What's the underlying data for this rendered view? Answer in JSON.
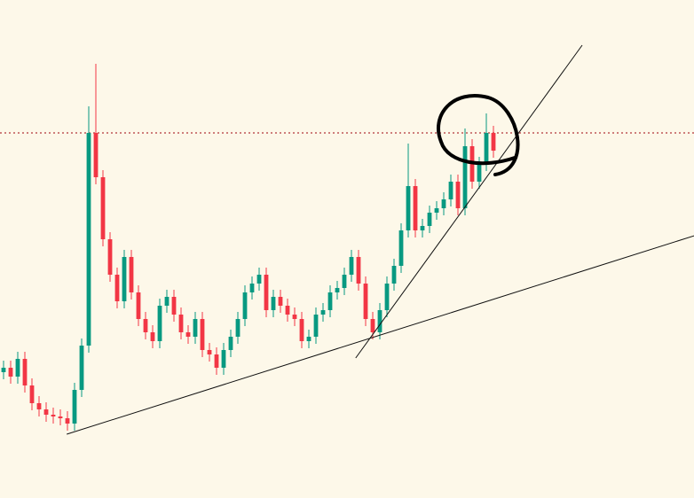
{
  "chart_data": {
    "type": "candlestick",
    "x": [
      0,
      1,
      2,
      3,
      4,
      5,
      6,
      7,
      8,
      9,
      10,
      11,
      12,
      13,
      14,
      15,
      16,
      17,
      18,
      19,
      20,
      21,
      22,
      23,
      24,
      25,
      26,
      27,
      28,
      29,
      30,
      31,
      32,
      33,
      34,
      35,
      36,
      37,
      38,
      39,
      40,
      41,
      42,
      43,
      44,
      45,
      46,
      47,
      48,
      49,
      50,
      51,
      52,
      53,
      54,
      55,
      56,
      57,
      58,
      59,
      60,
      61,
      62,
      63,
      64,
      65,
      66,
      67,
      68,
      69
    ],
    "open": [
      142,
      147,
      137,
      157,
      127,
      107,
      100,
      94,
      92,
      90,
      84,
      122,
      172,
      412,
      362,
      292,
      252,
      222,
      272,
      232,
      202,
      187,
      177,
      217,
      227,
      207,
      187,
      182,
      202,
      167,
      162,
      147,
      167,
      182,
      202,
      232,
      242,
      252,
      212,
      227,
      217,
      207,
      202,
      177,
      182,
      207,
      212,
      232,
      237,
      252,
      272,
      242,
      202,
      187,
      212,
      242,
      262,
      302,
      352,
      302,
      307,
      322,
      327,
      337,
      357,
      327,
      397,
      357,
      377,
      412
    ],
    "high": [
      155,
      155,
      165,
      165,
      135,
      115,
      108,
      102,
      100,
      98,
      130,
      180,
      442,
      490,
      370,
      300,
      260,
      280,
      280,
      240,
      210,
      195,
      225,
      235,
      235,
      215,
      195,
      210,
      210,
      175,
      170,
      175,
      190,
      210,
      240,
      250,
      260,
      260,
      235,
      235,
      225,
      215,
      210,
      190,
      215,
      220,
      240,
      245,
      260,
      280,
      280,
      250,
      210,
      220,
      250,
      270,
      310,
      400,
      360,
      315,
      330,
      335,
      345,
      365,
      365,
      417,
      405,
      385,
      434,
      420
    ],
    "low": [
      134,
      129,
      129,
      119,
      99,
      92,
      86,
      84,
      82,
      76,
      76,
      114,
      164,
      354,
      284,
      244,
      214,
      214,
      224,
      194,
      179,
      169,
      169,
      209,
      199,
      179,
      174,
      174,
      159,
      154,
      139,
      139,
      159,
      174,
      194,
      224,
      234,
      204,
      204,
      209,
      199,
      194,
      169,
      169,
      174,
      199,
      204,
      224,
      229,
      244,
      234,
      194,
      179,
      179,
      204,
      234,
      254,
      294,
      294,
      294,
      299,
      314,
      319,
      329,
      319,
      319,
      349,
      349,
      369,
      384
    ],
    "close": [
      147,
      137,
      157,
      127,
      107,
      100,
      94,
      92,
      90,
      84,
      122,
      172,
      412,
      362,
      292,
      252,
      222,
      272,
      232,
      202,
      187,
      177,
      217,
      227,
      207,
      187,
      182,
      202,
      167,
      162,
      147,
      167,
      182,
      202,
      232,
      242,
      252,
      212,
      227,
      217,
      207,
      202,
      177,
      182,
      207,
      212,
      232,
      237,
      252,
      272,
      242,
      202,
      187,
      212,
      242,
      262,
      302,
      352,
      302,
      307,
      322,
      327,
      337,
      357,
      327,
      397,
      357,
      377,
      412,
      392
    ],
    "up_color": "#089981",
    "down_color": "#f23645",
    "xlim": [
      -0.5,
      97.25
    ],
    "ylim": [
      0,
      562
    ],
    "hline": {
      "value": 412,
      "color": "#b2353a"
    },
    "trendlines": [
      {
        "points": [
          [
            8.9,
            72
          ],
          [
            97.3,
            296
          ]
        ],
        "color": "#111111"
      },
      {
        "points": [
          [
            49.6,
            158
          ],
          [
            81.5,
            511
          ]
        ],
        "color": "#111111"
      }
    ]
  }
}
